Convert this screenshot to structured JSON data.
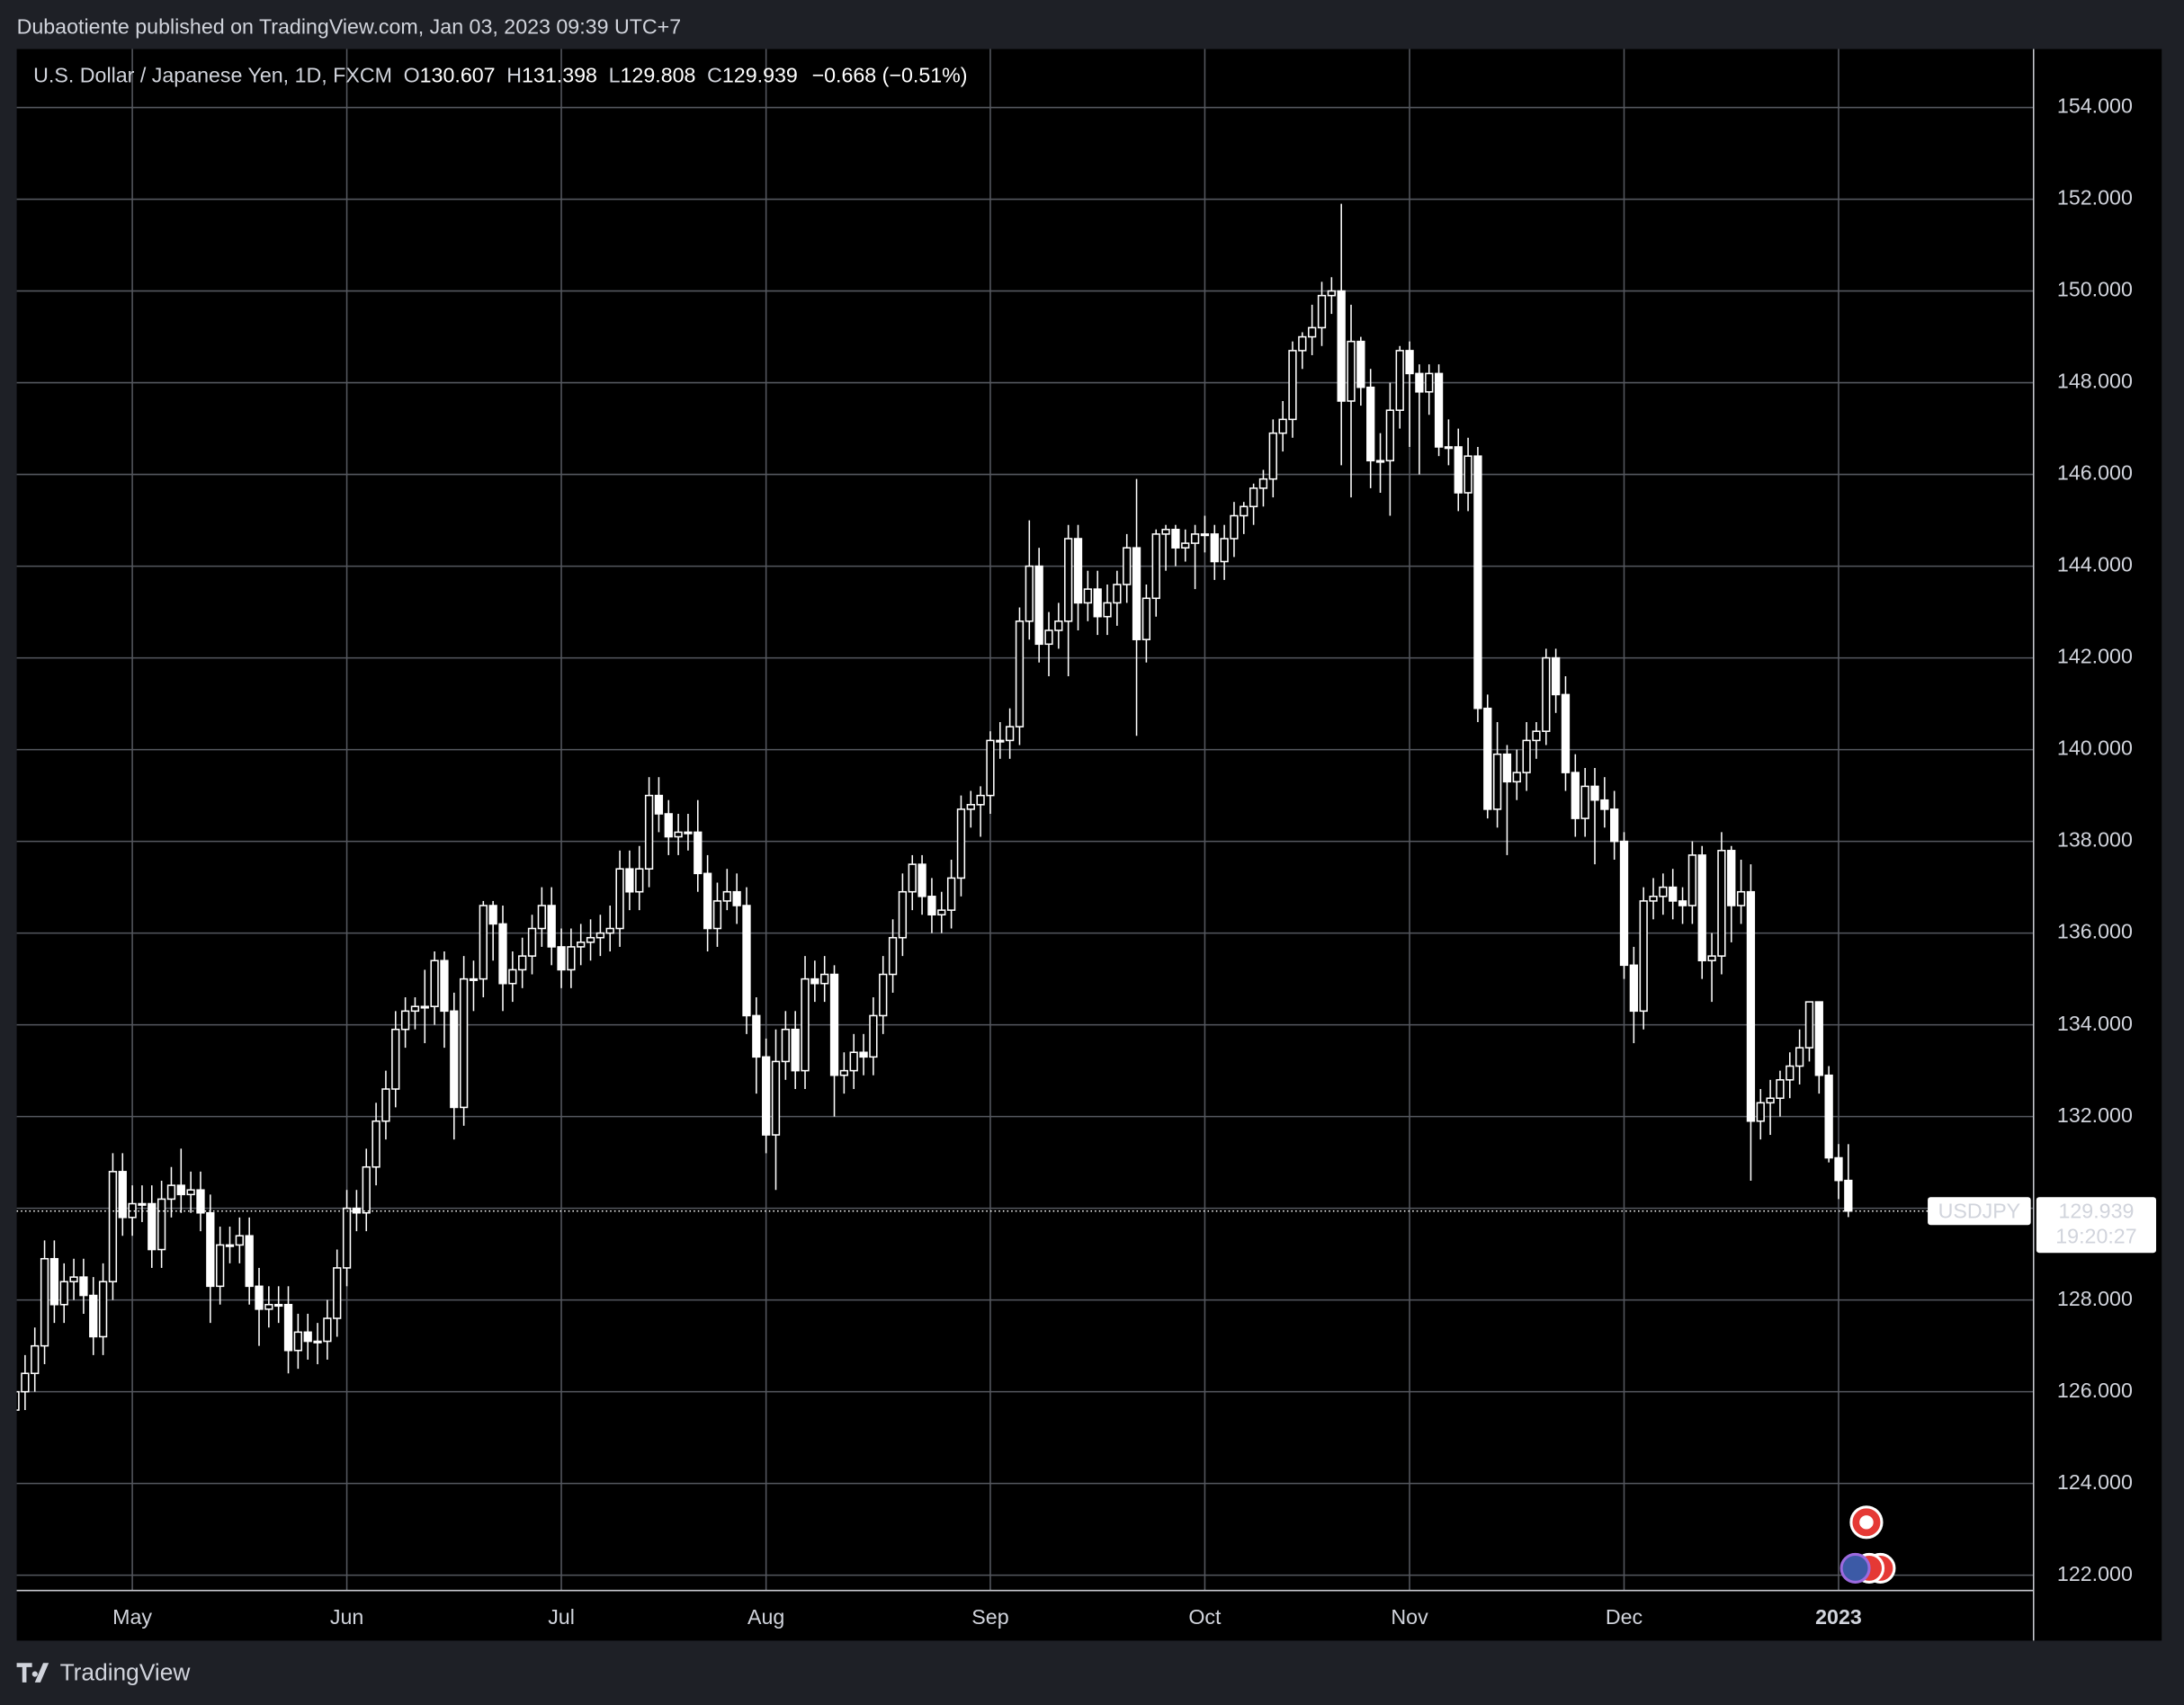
{
  "published": "Dubaotiente published on TradingView.com, Jan 03, 2023 09:39 UTC+7",
  "legend": {
    "symbol": "U.S. Dollar / Japanese Yen, 1D, FXCM",
    "open_prefix": "O",
    "high_prefix": "H",
    "low_prefix": "L",
    "close_prefix": "C",
    "change": "−0.668 (−0.51%)"
  },
  "price_label": {
    "symbol": "USDJPY",
    "countdown": "19:20:27"
  },
  "footer": {
    "brand": "TradingView"
  },
  "chart_data": {
    "type": "candlestick",
    "up_fill": "#000000",
    "down_fill": "#ffffff",
    "line_color": "#ffffff",
    "grid": true,
    "grid_color": "#55585f",
    "ylim": [
      121.575,
      155.275
    ],
    "yticks": [
      {
        "value": 122,
        "label": "122.000"
      },
      {
        "value": 124,
        "label": "124.000"
      },
      {
        "value": 126,
        "label": "126.000"
      },
      {
        "value": 128,
        "label": "128.000"
      },
      {
        "value": 130,
        "label": "130.000"
      },
      {
        "value": 132,
        "label": "132.000"
      },
      {
        "value": 134,
        "label": "134.000"
      },
      {
        "value": 136,
        "label": "136.000"
      },
      {
        "value": 138,
        "label": "138.000"
      },
      {
        "value": 140,
        "label": "140.000"
      },
      {
        "value": 142,
        "label": "142.000"
      },
      {
        "value": 144,
        "label": "144.000"
      },
      {
        "value": 146,
        "label": "146.000"
      },
      {
        "value": 148,
        "label": "148.000"
      },
      {
        "value": 150,
        "label": "150.000"
      },
      {
        "value": 152,
        "label": "152.000"
      },
      {
        "value": 154,
        "label": "154.000"
      }
    ],
    "categories": [
      null,
      null,
      null,
      null,
      null,
      null,
      null,
      null,
      null,
      null,
      null,
      null,
      "May",
      null,
      null,
      null,
      null,
      null,
      null,
      null,
      null,
      null,
      null,
      null,
      null,
      null,
      null,
      null,
      null,
      null,
      null,
      null,
      null,
      null,
      "Jun",
      null,
      null,
      null,
      null,
      null,
      null,
      null,
      null,
      null,
      null,
      null,
      null,
      null,
      null,
      null,
      null,
      null,
      null,
      null,
      null,
      null,
      "Jul",
      null,
      null,
      null,
      null,
      null,
      null,
      null,
      null,
      null,
      null,
      null,
      null,
      null,
      null,
      null,
      null,
      null,
      null,
      null,
      null,
      "Aug",
      null,
      null,
      null,
      null,
      null,
      null,
      null,
      null,
      null,
      null,
      null,
      null,
      null,
      null,
      null,
      null,
      null,
      null,
      null,
      null,
      null,
      null,
      "Sep",
      null,
      null,
      null,
      null,
      null,
      null,
      null,
      null,
      null,
      null,
      null,
      null,
      null,
      null,
      null,
      null,
      null,
      null,
      null,
      null,
      null,
      "Oct",
      null,
      null,
      null,
      null,
      null,
      null,
      null,
      null,
      null,
      null,
      null,
      null,
      null,
      null,
      null,
      null,
      null,
      null,
      null,
      null,
      "Nov",
      null,
      null,
      null,
      null,
      null,
      null,
      null,
      null,
      null,
      null,
      null,
      null,
      null,
      null,
      null,
      null,
      null,
      null,
      null,
      null,
      null,
      "Dec",
      null,
      null,
      null,
      null,
      null,
      null,
      null,
      null,
      null,
      null,
      null,
      null,
      null,
      null,
      null,
      null,
      null,
      null,
      null,
      null,
      null,
      "2023",
      null
    ],
    "open": [
      125.6,
      126.0,
      126.4,
      127.0,
      128.9,
      127.9,
      128.4,
      128.5,
      128.1,
      127.2,
      128.4,
      130.8,
      129.8,
      130.1,
      130.1,
      129.1,
      130.2,
      130.5,
      130.3,
      130.4,
      129.9,
      128.3,
      129.2,
      129.2,
      129.4,
      128.3,
      127.8,
      127.9,
      127.9,
      126.9,
      127.3,
      127.1,
      127.1,
      127.6,
      128.7,
      130.0,
      129.9,
      130.9,
      131.9,
      132.6,
      133.9,
      134.3,
      134.4,
      134.4,
      135.4,
      134.3,
      132.2,
      135.0,
      135.0,
      136.6,
      136.2,
      134.9,
      135.2,
      135.5,
      136.1,
      136.6,
      135.7,
      135.2,
      135.7,
      135.8,
      135.9,
      136.0,
      136.1,
      137.4,
      136.9,
      137.4,
      139.0,
      138.6,
      138.1,
      138.2,
      138.2,
      137.3,
      136.1,
      136.7,
      136.9,
      136.6,
      134.2,
      133.3,
      131.6,
      133.2,
      133.9,
      133.0,
      135.0,
      134.9,
      135.1,
      132.9,
      133.0,
      133.4,
      133.3,
      134.2,
      135.1,
      135.9,
      136.9,
      137.5,
      136.8,
      136.4,
      136.5,
      137.2,
      138.7,
      138.8,
      139.0,
      140.2,
      140.2,
      140.5,
      142.8,
      144.0,
      142.3,
      142.6,
      142.8,
      144.6,
      143.2,
      143.5,
      142.9,
      143.2,
      143.6,
      144.4,
      142.4,
      143.3,
      144.7,
      144.8,
      144.4,
      144.5,
      144.7,
      144.7,
      144.1,
      144.6,
      145.1,
      145.3,
      145.7,
      145.9,
      146.9,
      147.2,
      148.7,
      149.0,
      149.2,
      149.9,
      150.0,
      147.6,
      148.9,
      147.9,
      146.3,
      146.3,
      147.4,
      148.7,
      148.2,
      147.8,
      148.2,
      146.6,
      146.6,
      145.6,
      146.4,
      140.9,
      138.7,
      139.9,
      139.3,
      139.5,
      140.2,
      140.4,
      142.0,
      141.2,
      139.5,
      138.5,
      139.2,
      138.9,
      138.7,
      138.0,
      135.3,
      134.3,
      136.7,
      136.8,
      137.0,
      136.7,
      136.6,
      137.7,
      135.4,
      135.5,
      137.8,
      136.6,
      136.9,
      131.9,
      132.3,
      132.4,
      132.8,
      133.1,
      133.5,
      134.5,
      132.9,
      131.1,
      130.607
    ],
    "high": [
      126.4,
      126.8,
      127.4,
      129.3,
      129.3,
      128.8,
      128.9,
      128.9,
      128.5,
      128.8,
      131.2,
      131.2,
      130.5,
      130.5,
      130.5,
      130.6,
      130.9,
      131.3,
      130.8,
      130.8,
      130.3,
      129.6,
      129.6,
      129.8,
      129.8,
      128.7,
      128.3,
      128.3,
      128.3,
      127.7,
      127.7,
      127.5,
      128.0,
      129.1,
      130.4,
      130.4,
      131.3,
      132.3,
      133.0,
      134.3,
      134.6,
      134.6,
      135.2,
      135.6,
      135.6,
      134.7,
      135.5,
      135.4,
      136.7,
      136.7,
      136.6,
      135.6,
      135.9,
      136.4,
      137.0,
      137.0,
      136.1,
      136.1,
      136.2,
      136.3,
      136.4,
      136.6,
      137.8,
      137.8,
      137.9,
      139.4,
      139.4,
      138.9,
      138.6,
      138.6,
      138.9,
      137.7,
      137.1,
      137.4,
      137.3,
      137.0,
      134.6,
      133.7,
      133.9,
      134.3,
      134.3,
      135.5,
      135.4,
      135.5,
      135.3,
      133.4,
      133.8,
      133.8,
      134.6,
      135.5,
      136.3,
      137.3,
      137.7,
      137.7,
      137.2,
      136.9,
      137.6,
      139.0,
      139.1,
      139.2,
      140.4,
      140.6,
      140.9,
      143.1,
      145.0,
      144.4,
      143.0,
      143.2,
      144.9,
      144.9,
      143.9,
      143.9,
      143.6,
      143.9,
      144.7,
      145.9,
      143.6,
      144.8,
      144.9,
      144.9,
      144.8,
      144.9,
      145.1,
      144.9,
      144.9,
      145.4,
      145.4,
      145.8,
      146.1,
      147.2,
      147.6,
      148.9,
      149.1,
      149.7,
      150.2,
      150.3,
      151.9,
      149.7,
      149.0,
      148.3,
      146.9,
      148.0,
      148.8,
      148.9,
      148.4,
      148.4,
      148.4,
      147.2,
      147.0,
      146.8,
      146.6,
      141.2,
      140.6,
      140.1,
      140.0,
      140.6,
      140.6,
      142.2,
      142.2,
      141.6,
      139.9,
      139.6,
      139.6,
      139.4,
      139.1,
      138.2,
      135.7,
      137.0,
      137.2,
      137.3,
      137.4,
      137.0,
      138.0,
      137.9,
      136.0,
      138.2,
      137.9,
      137.6,
      137.5,
      132.6,
      132.8,
      133.0,
      133.4,
      133.9,
      134.5,
      134.5,
      133.1,
      131.4,
      131.398
    ],
    "low": [
      125.2,
      125.6,
      126.0,
      126.6,
      127.5,
      127.5,
      128.0,
      127.7,
      126.8,
      126.8,
      128.0,
      129.4,
      129.4,
      129.7,
      128.7,
      128.7,
      129.8,
      129.9,
      129.9,
      129.5,
      127.5,
      127.9,
      128.8,
      128.8,
      127.9,
      127.0,
      127.4,
      127.5,
      126.4,
      126.5,
      126.7,
      126.6,
      126.7,
      127.2,
      128.3,
      129.5,
      129.5,
      130.5,
      131.5,
      132.2,
      133.5,
      133.9,
      133.6,
      134.0,
      133.5,
      131.5,
      131.8,
      134.3,
      134.6,
      135.4,
      134.3,
      134.5,
      134.8,
      135.1,
      135.7,
      135.3,
      134.8,
      134.8,
      135.3,
      135.4,
      135.5,
      135.6,
      135.7,
      136.5,
      136.5,
      137.0,
      138.2,
      137.7,
      137.7,
      137.8,
      136.9,
      135.6,
      135.7,
      136.5,
      136.2,
      133.8,
      132.5,
      131.2,
      130.4,
      132.8,
      132.6,
      132.6,
      134.5,
      134.5,
      132.0,
      132.5,
      132.6,
      132.9,
      132.9,
      133.8,
      134.7,
      135.5,
      136.5,
      136.4,
      136.0,
      136.0,
      136.1,
      136.8,
      138.3,
      138.1,
      138.6,
      139.8,
      139.8,
      140.1,
      142.4,
      141.9,
      141.6,
      142.2,
      141.6,
      142.6,
      142.8,
      142.5,
      142.5,
      142.7,
      143.2,
      140.3,
      141.9,
      142.9,
      143.9,
      144.0,
      144.1,
      143.5,
      144.3,
      143.7,
      143.7,
      144.2,
      144.7,
      144.9,
      145.3,
      145.5,
      146.5,
      146.8,
      148.3,
      148.6,
      148.8,
      149.5,
      146.2,
      145.5,
      147.5,
      145.7,
      145.6,
      145.1,
      147.0,
      146.6,
      146.0,
      147.3,
      146.4,
      146.2,
      145.2,
      145.2,
      140.6,
      138.5,
      138.3,
      137.7,
      138.9,
      139.1,
      139.8,
      140.1,
      140.8,
      139.1,
      138.1,
      138.1,
      137.5,
      138.3,
      137.6,
      135.0,
      133.6,
      133.9,
      136.3,
      136.4,
      136.3,
      136.2,
      136.2,
      135.0,
      134.5,
      135.1,
      135.8,
      136.2,
      130.6,
      131.5,
      131.6,
      132.0,
      132.4,
      132.7,
      133.2,
      132.5,
      131.0,
      130.2,
      129.808
    ],
    "close": [
      126.0,
      126.4,
      127.0,
      128.9,
      127.9,
      128.4,
      128.5,
      128.1,
      127.2,
      128.4,
      130.8,
      129.8,
      130.1,
      130.1,
      129.1,
      130.2,
      130.5,
      130.3,
      130.4,
      129.9,
      128.3,
      129.2,
      129.2,
      129.4,
      128.3,
      127.8,
      127.9,
      127.9,
      126.9,
      127.3,
      127.1,
      127.1,
      127.6,
      128.7,
      130.0,
      129.9,
      130.9,
      131.9,
      132.6,
      133.9,
      134.3,
      134.4,
      134.4,
      135.4,
      134.3,
      132.2,
      135.0,
      135.0,
      136.6,
      136.2,
      134.9,
      135.2,
      135.5,
      136.1,
      136.6,
      135.7,
      135.2,
      135.7,
      135.8,
      135.9,
      136.0,
      136.1,
      137.4,
      136.9,
      137.4,
      139.0,
      138.6,
      138.1,
      138.2,
      138.2,
      137.3,
      136.1,
      136.7,
      136.9,
      136.6,
      134.2,
      133.3,
      131.6,
      133.2,
      133.9,
      133.0,
      135.0,
      134.9,
      135.1,
      132.9,
      133.0,
      133.4,
      133.3,
      134.2,
      135.1,
      135.9,
      136.9,
      137.5,
      136.8,
      136.4,
      136.5,
      137.2,
      138.7,
      138.8,
      139.0,
      140.2,
      140.2,
      140.5,
      142.8,
      144.0,
      142.3,
      142.6,
      142.8,
      144.6,
      143.2,
      143.5,
      142.9,
      143.2,
      143.6,
      144.4,
      142.4,
      143.3,
      144.7,
      144.8,
      144.4,
      144.5,
      144.7,
      144.7,
      144.1,
      144.6,
      145.1,
      145.3,
      145.7,
      145.9,
      146.9,
      147.2,
      148.7,
      149.0,
      149.2,
      149.9,
      150.0,
      147.6,
      148.9,
      147.9,
      146.3,
      146.3,
      147.4,
      148.7,
      148.2,
      147.8,
      148.2,
      146.6,
      146.6,
      145.6,
      146.4,
      140.9,
      138.7,
      139.9,
      139.3,
      139.5,
      140.2,
      140.4,
      142.0,
      141.2,
      139.5,
      138.5,
      139.2,
      138.9,
      138.7,
      138.0,
      135.3,
      134.3,
      136.7,
      136.8,
      137.0,
      136.7,
      136.6,
      137.7,
      135.4,
      135.5,
      137.8,
      136.6,
      136.9,
      131.9,
      132.3,
      132.4,
      132.8,
      133.1,
      133.5,
      134.5,
      132.9,
      131.1,
      130.607,
      129.939
    ]
  }
}
